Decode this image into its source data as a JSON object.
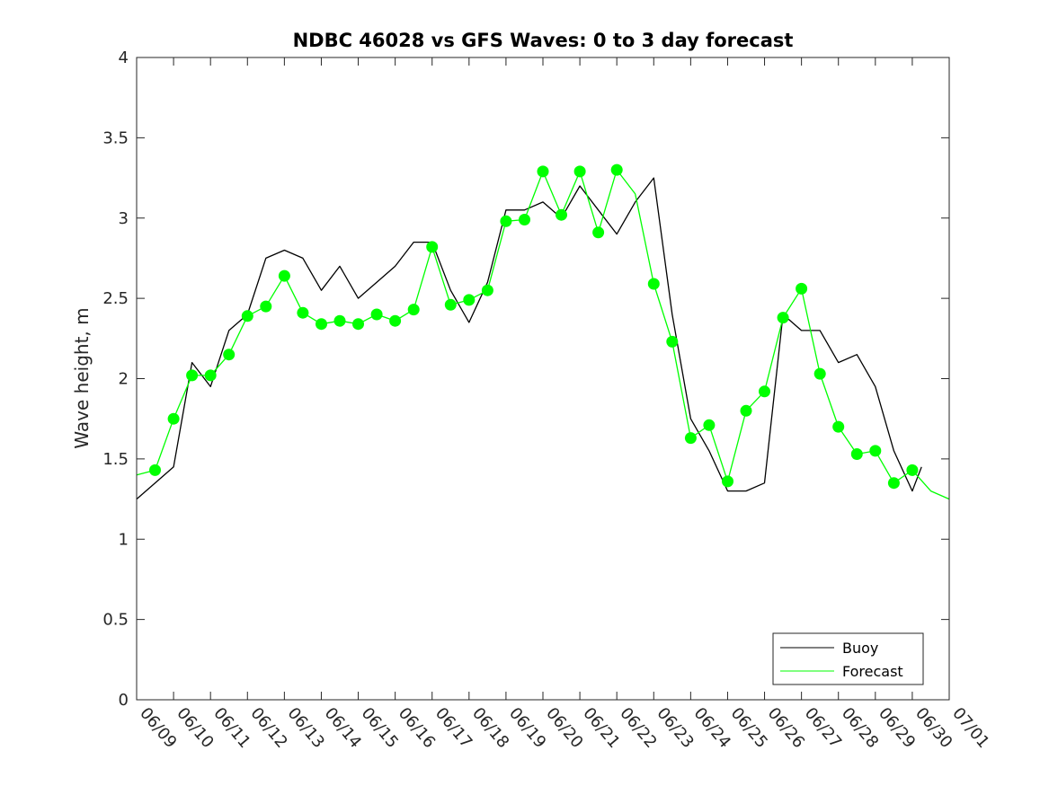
{
  "chart_data": {
    "type": "line",
    "title": "NDBC 46028 vs GFS Waves: 0 to 3 day forecast",
    "xlabel": "",
    "ylabel": "Wave height, m",
    "xlim": [
      "06/09",
      "07/01"
    ],
    "ylim": [
      0,
      4
    ],
    "x_tick_labels": [
      "06/09",
      "06/10",
      "06/11",
      "06/12",
      "06/13",
      "06/14",
      "06/15",
      "06/16",
      "06/17",
      "06/18",
      "06/19",
      "06/20",
      "06/21",
      "06/22",
      "06/23",
      "06/24",
      "06/25",
      "06/26",
      "06/27",
      "06/28",
      "06/29",
      "06/30",
      "07/01"
    ],
    "y_tick_labels": [
      "0",
      "0.5",
      "1",
      "1.5",
      "2",
      "2.5",
      "3",
      "3.5",
      "4"
    ],
    "y_ticks": [
      0,
      0.5,
      1,
      1.5,
      2,
      2.5,
      3,
      3.5,
      4
    ],
    "grid": false,
    "legend_position": "bottom-right",
    "legend": [
      {
        "name": "Buoy",
        "color": "#000000"
      },
      {
        "name": "Forecast",
        "color": "#00ff00"
      }
    ],
    "series": [
      {
        "name": "Buoy",
        "color": "#000000",
        "x": [
          "06/09 00",
          "06/09 12",
          "06/10 00",
          "06/10 12",
          "06/11 00",
          "06/11 12",
          "06/12 00",
          "06/12 12",
          "06/13 00",
          "06/13 12",
          "06/14 00",
          "06/14 12",
          "06/15 00",
          "06/15 12",
          "06/16 00",
          "06/16 12",
          "06/17 00",
          "06/17 12",
          "06/18 00",
          "06/18 12",
          "06/19 00",
          "06/19 12",
          "06/20 00",
          "06/20 12",
          "06/21 00",
          "06/21 12",
          "06/22 00",
          "06/22 12",
          "06/23 00",
          "06/23 12",
          "06/24 00",
          "06/24 12",
          "06/25 00",
          "06/25 12",
          "06/26 00",
          "06/26 12",
          "06/27 00",
          "06/27 12",
          "06/28 00",
          "06/28 12",
          "06/29 00",
          "06/29 12",
          "06/30 00",
          "06/30 06"
        ],
        "y": [
          1.25,
          1.35,
          1.45,
          2.1,
          1.95,
          2.3,
          2.4,
          2.75,
          2.8,
          2.75,
          2.55,
          2.7,
          2.5,
          2.6,
          2.7,
          2.85,
          2.85,
          2.55,
          2.35,
          2.6,
          3.05,
          3.05,
          3.1,
          3.0,
          3.2,
          3.05,
          2.9,
          3.1,
          3.25,
          2.4,
          1.75,
          1.55,
          1.3,
          1.3,
          1.35,
          2.4,
          2.3,
          2.3,
          2.1,
          2.15,
          1.95,
          1.55,
          1.3,
          1.45
        ]
      },
      {
        "name": "Forecast",
        "color": "#00ff00",
        "x": [
          "06/09 00",
          "06/09 12",
          "06/10 00",
          "06/10 12",
          "06/11 00",
          "06/11 12",
          "06/12 00",
          "06/12 12",
          "06/13 00",
          "06/13 12",
          "06/14 00",
          "06/14 12",
          "06/15 00",
          "06/15 12",
          "06/16 00",
          "06/16 12",
          "06/17 00",
          "06/17 12",
          "06/18 00",
          "06/18 12",
          "06/19 00",
          "06/19 12",
          "06/20 00",
          "06/20 12",
          "06/21 00",
          "06/21 12",
          "06/22 00",
          "06/22 12",
          "06/23 00",
          "06/23 12",
          "06/24 00",
          "06/24 12",
          "06/25 00",
          "06/25 12",
          "06/26 00",
          "06/26 12",
          "06/27 00",
          "06/27 12",
          "06/28 00",
          "06/28 12",
          "06/29 00",
          "06/29 12",
          "06/30 00",
          "06/30 12",
          "07/01 00"
        ],
        "y": [
          1.4,
          1.43,
          1.75,
          2.02,
          2.02,
          2.15,
          2.39,
          2.45,
          2.64,
          2.41,
          2.34,
          2.36,
          2.34,
          2.4,
          2.36,
          2.43,
          2.82,
          2.46,
          2.49,
          2.55,
          2.98,
          2.99,
          3.29,
          3.02,
          3.29,
          2.91,
          3.3,
          3.15,
          2.59,
          2.23,
          1.63,
          1.71,
          1.36,
          1.8,
          1.92,
          2.38,
          2.56,
          2.03,
          1.7,
          1.53,
          1.55,
          1.35,
          1.43,
          1.3,
          1.25
        ]
      }
    ],
    "forecast_markers": {
      "x": [
        "06/09 12",
        "06/10 00",
        "06/10 12",
        "06/11 00",
        "06/11 12",
        "06/12 00",
        "06/12 12",
        "06/13 00",
        "06/13 12",
        "06/14 00",
        "06/14 12",
        "06/15 00",
        "06/15 12",
        "06/16 00",
        "06/16 12",
        "06/17 00",
        "06/17 12",
        "06/18 00",
        "06/18 12",
        "06/19 00",
        "06/19 12",
        "06/20 00",
        "06/20 12",
        "06/21 00",
        "06/21 12",
        "06/22 00",
        "06/23 00",
        "06/23 12",
        "06/24 00",
        "06/24 12",
        "06/25 00",
        "06/25 12",
        "06/26 00",
        "06/26 12",
        "06/27 00",
        "06/27 12",
        "06/28 00",
        "06/28 12",
        "06/29 00",
        "06/29 12",
        "06/30 00"
      ],
      "y": [
        1.43,
        1.75,
        2.02,
        2.02,
        2.15,
        2.39,
        2.45,
        2.64,
        2.41,
        2.34,
        2.36,
        2.34,
        2.4,
        2.36,
        2.43,
        2.82,
        2.46,
        2.49,
        2.55,
        2.98,
        2.99,
        3.29,
        3.02,
        3.29,
        2.91,
        3.3,
        2.59,
        2.23,
        1.63,
        1.71,
        1.36,
        1.8,
        1.92,
        2.38,
        2.56,
        2.03,
        1.7,
        1.53,
        1.55,
        1.35,
        1.43
      ],
      "color": "#00ff00"
    }
  }
}
